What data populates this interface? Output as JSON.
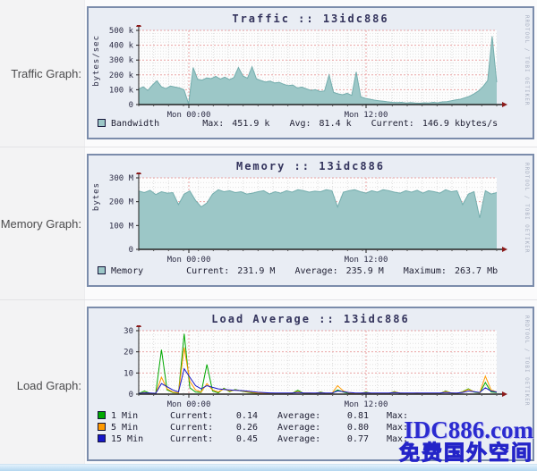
{
  "rows": [
    {
      "label": "Traffic Graph:"
    },
    {
      "label": "Memory Graph:"
    },
    {
      "label": "Load Graph:"
    }
  ],
  "credit": "RRDTOOL / TOBI OETIKER",
  "watermark": {
    "line1": "IDC886.com",
    "line2": "免费国外空间",
    "color": "#2b2bd0"
  },
  "chart_data": [
    {
      "type": "area",
      "title": "Traffic :: 13idc886",
      "ylabel": "bytes/sec",
      "ylim": [
        0,
        500
      ],
      "unit": "kbytes/s",
      "fill_color": "#9cc7c7",
      "line_color": "#74adad",
      "ytick_labels": [
        "0",
        "100 k",
        "200 k",
        "300 k",
        "400 k",
        "500 k"
      ],
      "xticks": [
        {
          "pos": 0.14,
          "label": "Mon 00:00"
        },
        {
          "pos": 0.635,
          "label": "Mon 12:00"
        }
      ],
      "values": [
        105,
        120,
        95,
        130,
        160,
        120,
        108,
        125,
        118,
        112,
        100,
        5,
        250,
        170,
        165,
        180,
        175,
        190,
        172,
        185,
        168,
        182,
        250,
        192,
        178,
        255,
        172,
        162,
        152,
        158,
        146,
        150,
        137,
        128,
        132,
        112,
        118,
        106,
        96,
        100,
        88,
        92,
        200,
        82,
        72,
        66,
        76,
        62,
        220,
        52,
        42,
        36,
        30,
        26,
        22,
        18,
        15,
        13,
        15,
        11,
        13,
        10,
        9,
        12,
        10,
        15,
        12,
        18,
        20,
        26,
        32,
        36,
        46,
        56,
        72,
        92,
        122,
        162,
        460,
        150
      ],
      "legend": {
        "swatch_color": "#9cc7c7",
        "label": "Bandwidth",
        "stats": [
          {
            "k": "Max:",
            "v": "451.9 k"
          },
          {
            "k": "Avg:",
            "v": "81.4 k"
          },
          {
            "k": "Current:",
            "v": "146.9 kbytes/s"
          }
        ]
      }
    },
    {
      "type": "area",
      "title": "Memory :: 13idc886",
      "ylabel": "bytes",
      "ylim": [
        0,
        300
      ],
      "unit": "Mbytes",
      "fill_color": "#9cc7c7",
      "line_color": "#74adad",
      "ytick_labels": [
        "0",
        "100 M",
        "200 M",
        "300 M"
      ],
      "xticks": [
        {
          "pos": 0.14,
          "label": "Mon 00:00"
        },
        {
          "pos": 0.635,
          "label": "Mon 12:00"
        }
      ],
      "values": [
        245,
        238,
        248,
        230,
        242,
        236,
        238,
        188,
        232,
        245,
        205,
        178,
        195,
        232,
        250,
        242,
        246,
        238,
        242,
        232,
        236,
        242,
        246,
        232,
        242,
        236,
        246,
        240,
        250,
        246,
        240,
        244,
        242,
        250,
        246,
        178,
        240,
        246,
        250,
        242,
        236,
        246,
        240,
        250,
        246,
        240,
        236,
        246,
        240,
        248,
        236,
        246,
        242,
        236,
        250,
        242,
        246,
        188,
        232,
        242,
        132,
        246,
        232,
        238
      ],
      "legend": {
        "swatch_color": "#9cc7c7",
        "label": "Memory",
        "stats": [
          {
            "k": "Current:",
            "v": "231.9 M"
          },
          {
            "k": "Average:",
            "v": "235.9 M"
          },
          {
            "k": "Maximum:",
            "v": "263.7 Mb"
          }
        ]
      }
    },
    {
      "type": "line",
      "title": "Load Average :: 13idc886",
      "ylabel": "",
      "ylim": [
        0,
        30
      ],
      "ytick_labels": [
        "0",
        "10",
        "20",
        "30"
      ],
      "xticks": [
        {
          "pos": 0.14,
          "label": "Mon 00:00"
        },
        {
          "pos": 0.635,
          "label": "Mon 12:00"
        }
      ],
      "series": [
        {
          "name": "1 Min",
          "color": "#00a800",
          "values": [
            0.3,
            1.5,
            0.4,
            0.3,
            21,
            2,
            0.8,
            0.5,
            28.5,
            3,
            1,
            0.8,
            14,
            1.5,
            0.6,
            2.8,
            1.2,
            2.2,
            1.5,
            1,
            0.6,
            0.4,
            0.3,
            0.3,
            0.3,
            0.3,
            0.3,
            0.4,
            1.8,
            0.4,
            0.4,
            0.3,
            1,
            0.3,
            0.3,
            2,
            1,
            0.4,
            0.3,
            0.3,
            1,
            0.3,
            0.3,
            0.3,
            0.3,
            1.2,
            0.4,
            0.3,
            0.3,
            0.4,
            0.3,
            0.3,
            0.3,
            0.3,
            1.5,
            0.5,
            0.3,
            1.2,
            2.5,
            1,
            0.5,
            5.5,
            1,
            0.8
          ]
        },
        {
          "name": "5 Min",
          "color": "#ff9a00",
          "values": [
            0.3,
            0.8,
            0.4,
            0.3,
            8,
            2.5,
            1,
            0.6,
            22,
            6,
            2,
            1,
            5,
            2,
            1,
            2.5,
            1.5,
            2,
            1.6,
            1.2,
            0.8,
            0.5,
            0.4,
            0.4,
            0.4,
            0.4,
            0.4,
            0.5,
            1.2,
            0.5,
            0.5,
            0.4,
            0.8,
            0.4,
            0.4,
            4,
            1.5,
            0.6,
            0.4,
            0.4,
            0.8,
            0.4,
            0.4,
            0.4,
            0.4,
            1,
            0.5,
            0.4,
            0.4,
            0.5,
            0.4,
            0.4,
            0.4,
            0.4,
            1.2,
            0.6,
            0.4,
            1,
            2.2,
            1.2,
            0.6,
            8.5,
            2,
            1
          ]
        },
        {
          "name": "15 Min",
          "color": "#1717c9",
          "values": [
            0.4,
            0.6,
            0.5,
            0.4,
            5,
            3.5,
            2,
            1,
            12,
            8,
            4,
            2.5,
            4,
            3.2,
            2.5,
            2.2,
            2,
            1.8,
            1.7,
            1.5,
            1.2,
            0.9,
            0.7,
            0.6,
            0.5,
            0.5,
            0.5,
            0.5,
            0.8,
            0.6,
            0.5,
            0.5,
            0.6,
            0.5,
            0.5,
            1.5,
            1.2,
            0.8,
            0.6,
            0.5,
            0.6,
            0.5,
            0.5,
            0.5,
            0.5,
            0.7,
            0.5,
            0.5,
            0.5,
            0.5,
            0.5,
            0.5,
            0.5,
            0.5,
            0.8,
            0.6,
            0.5,
            0.8,
            1.5,
            1.2,
            0.8,
            3,
            1.5,
            1
          ]
        }
      ],
      "legend": {
        "rows": [
          {
            "name": "1 Min",
            "color": "#00a800",
            "current_label": "Current:",
            "current": "0.14",
            "average_label": "Average:",
            "average": "0.81",
            "max_label": "Max:",
            "max": ""
          },
          {
            "name": "5 Min",
            "color": "#ff9a00",
            "current_label": "Current:",
            "current": "0.26",
            "average_label": "Average:",
            "average": "0.80",
            "max_label": "Max:",
            "max": ""
          },
          {
            "name": "15 Min",
            "color": "#1717c9",
            "current_label": "Current:",
            "current": "0.45",
            "average_label": "Average:",
            "average": "0.77",
            "max_label": "Max:",
            "max": ""
          }
        ]
      }
    }
  ]
}
